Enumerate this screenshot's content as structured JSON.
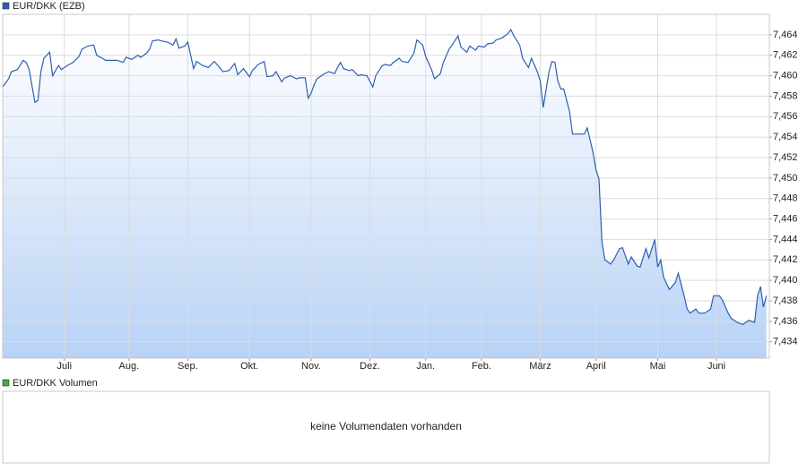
{
  "chart_data": [
    {
      "type": "line",
      "series": [
        {
          "name": "EUR/DKK (EZB)",
          "color": "#2c5fb3",
          "values": [
            7.4589,
            7.4597,
            7.4604,
            7.4606,
            7.4615,
            7.4613,
            7.4606,
            7.4574,
            7.4576,
            7.4604,
            7.4617,
            7.4623,
            7.46,
            7.461,
            7.4606,
            7.461,
            7.4613,
            7.4619,
            7.4626,
            7.4629,
            7.463,
            7.462,
            7.4617,
            7.4615,
            7.4615,
            7.4615,
            7.4613,
            7.4618,
            7.4616,
            7.462,
            7.4618,
            7.4622,
            7.4626,
            7.4634,
            7.4635,
            7.4634,
            7.4633,
            7.463,
            7.4636,
            7.4627,
            7.4629,
            7.4633,
            7.4607,
            7.4614,
            7.461,
            7.4608,
            7.4614,
            7.4611,
            7.4604,
            7.4605,
            7.4612,
            7.4601,
            7.4607,
            7.4599,
            7.4605,
            7.4611,
            7.4614,
            7.4599,
            7.46,
            7.4604,
            7.4594,
            7.4598,
            7.46,
            7.4597,
            7.4598,
            7.4598,
            7.4578,
            7.4583,
            7.4591,
            7.4597,
            7.4601,
            7.4604,
            7.4602,
            7.4608,
            7.4613,
            7.4607,
            7.4605,
            7.4606,
            7.46,
            7.4601,
            7.46,
            7.4589,
            7.46,
            7.4609,
            7.4611,
            7.461,
            7.4613,
            7.4617,
            7.4614,
            7.4613,
            7.4622,
            7.4635,
            7.463,
            7.4619,
            7.4606,
            7.4597,
            7.4602,
            7.4613,
            7.4626,
            7.463,
            7.4639,
            7.4628,
            7.4623,
            7.4629,
            7.4625,
            7.4629,
            7.4628,
            7.4631,
            7.4632,
            7.4635,
            7.4637,
            7.4641,
            7.4645,
            7.4639,
            7.463,
            7.4617,
            7.4608,
            7.4617,
            7.4604,
            7.4595,
            7.4569,
            7.4604,
            7.4614,
            7.4613,
            7.4595,
            7.4587,
            7.4587,
            7.4565,
            7.4543,
            7.4543,
            7.4543,
            7.4549,
            7.4525,
            7.4508,
            7.4499,
            7.4438,
            7.442,
            7.4416,
            7.442,
            7.4431,
            7.4432,
            7.4416,
            7.4423,
            7.4414,
            7.4413,
            7.4431,
            7.4422,
            7.444,
            7.4413,
            7.442,
            7.4403,
            7.4391,
            7.4398,
            7.4407,
            7.4385,
            7.4372,
            7.4368,
            7.4372,
            7.4368,
            7.4368,
            7.4372,
            7.4385,
            7.4385,
            7.4381,
            7.4368,
            7.4363,
            7.4359,
            7.4357,
            7.4359,
            7.4361,
            7.4359,
            7.4385,
            7.4394,
            7.4374,
            7.4385
          ]
        }
      ],
      "x": [
        0,
        2,
        3,
        5,
        7,
        8,
        9,
        11,
        12,
        13,
        14,
        16,
        17,
        19,
        20,
        22,
        24,
        26,
        27,
        29,
        31,
        32,
        34,
        35,
        37,
        39,
        41,
        42,
        44,
        46,
        47,
        49,
        50,
        51,
        53,
        54,
        56,
        58,
        59,
        60,
        62,
        63,
        65,
        66,
        68,
        70,
        72,
        73,
        75,
        77,
        79,
        80,
        82,
        84,
        85,
        87,
        89,
        90,
        92,
        93,
        95,
        96,
        98,
        100,
        101,
        103,
        104,
        105,
        106,
        107,
        109,
        111,
        113,
        114,
        115,
        116,
        118,
        119,
        121,
        122,
        124,
        126,
        127,
        129,
        130,
        132,
        133,
        135,
        136,
        138,
        140,
        141,
        143,
        144,
        146,
        147,
        149,
        150,
        152,
        153,
        155,
        156,
        158,
        159,
        161,
        162,
        164,
        165,
        167,
        168,
        170,
        172,
        173,
        174,
        176,
        177,
        179,
        180,
        182,
        183,
        184,
        186,
        187,
        188,
        189,
        190,
        191,
        193,
        194,
        196,
        198,
        199,
        201,
        202,
        203,
        204,
        205,
        207,
        208,
        210,
        211,
        213,
        214,
        216,
        217,
        219,
        220,
        222,
        223,
        224,
        225,
        227,
        229,
        230,
        232,
        233,
        234,
        236,
        237,
        239,
        241,
        242,
        244,
        245,
        247,
        248,
        250,
        252,
        253,
        254,
        256,
        257,
        258,
        259,
        260
      ],
      "xlim": [
        0,
        261
      ],
      "xticks": [
        {
          "value": 21,
          "label": "Juli"
        },
        {
          "value": 43,
          "label": "Aug."
        },
        {
          "value": 63,
          "label": "Sep."
        },
        {
          "value": 84,
          "label": "Okt."
        },
        {
          "value": 105,
          "label": "Nov."
        },
        {
          "value": 125,
          "label": "Dez."
        },
        {
          "value": 144,
          "label": "Jan."
        },
        {
          "value": 163,
          "label": "Feb."
        },
        {
          "value": 183,
          "label": "März"
        },
        {
          "value": 202,
          "label": "April"
        },
        {
          "value": 223,
          "label": "Mai"
        },
        {
          "value": 243,
          "label": "Juni"
        }
      ],
      "ylim": [
        7.4324,
        7.466
      ],
      "yticks": [
        {
          "value": 7.434,
          "label": "7,434"
        },
        {
          "value": 7.436,
          "label": "7,436"
        },
        {
          "value": 7.438,
          "label": "7,438"
        },
        {
          "value": 7.44,
          "label": "7,440"
        },
        {
          "value": 7.442,
          "label": "7,442"
        },
        {
          "value": 7.444,
          "label": "7,444"
        },
        {
          "value": 7.446,
          "label": "7,446"
        },
        {
          "value": 7.448,
          "label": "7,448"
        },
        {
          "value": 7.45,
          "label": "7,450"
        },
        {
          "value": 7.452,
          "label": "7,452"
        },
        {
          "value": 7.454,
          "label": "7,454"
        },
        {
          "value": 7.456,
          "label": "7,456"
        },
        {
          "value": 7.458,
          "label": "7,458"
        },
        {
          "value": 7.46,
          "label": "7,460"
        },
        {
          "value": 7.462,
          "label": "7,462"
        },
        {
          "value": 7.464,
          "label": "7,464"
        }
      ],
      "grid": true
    },
    {
      "type": "bar",
      "series": [
        {
          "name": "EUR/DKK Volumen",
          "color": "#3fae3f",
          "values": []
        }
      ],
      "note": "keine Volumendaten vorhanden"
    }
  ]
}
